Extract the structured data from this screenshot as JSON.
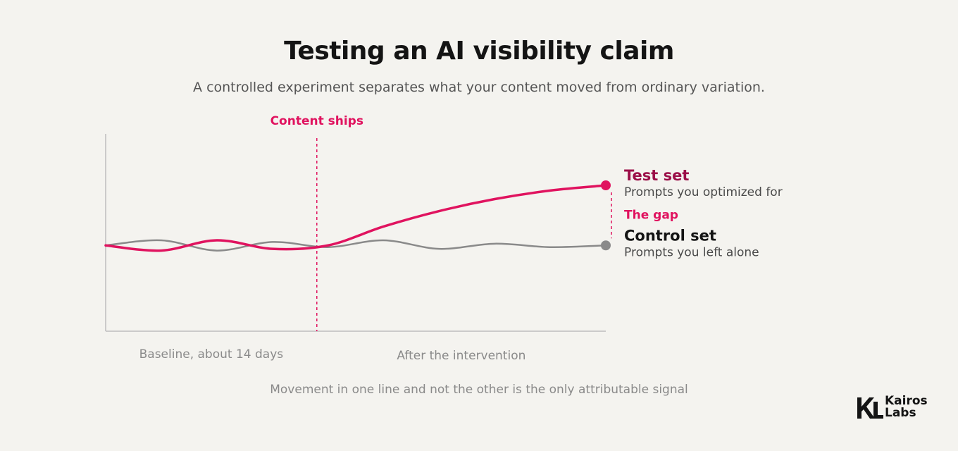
{
  "header": {
    "title": "Testing an AI visibility claim",
    "subtitle": "A controlled experiment separates what your content moved from ordinary variation."
  },
  "chart_data": {
    "type": "line",
    "x": [
      0,
      1,
      2,
      3,
      4,
      5,
      6,
      7,
      8,
      9
    ],
    "series": [
      {
        "name": "Test set",
        "description": "Prompts you optimized for",
        "color": "#e0135f",
        "values": [
          50,
          47,
          53,
          48,
          50,
          61,
          70,
          77,
          82,
          85
        ]
      },
      {
        "name": "Control set",
        "description": "Prompts you left alone",
        "color": "#8a8a8a",
        "values": [
          50,
          53,
          47,
          52,
          49,
          53,
          48,
          51,
          49,
          50
        ]
      }
    ],
    "event": {
      "label": "Content ships",
      "x": 3.8,
      "color": "#e0135f"
    },
    "gap_label": "The gap",
    "phase_labels": [
      "Baseline, about 14 days",
      "After the intervention"
    ],
    "note": "Movement in one line and not the other is the only attributable signal",
    "ylim": [
      0,
      115
    ],
    "grid": false,
    "legend": "right"
  },
  "brand": {
    "line1": "Kairos",
    "line2": "Labs",
    "icon": "kl-monogram-icon"
  }
}
